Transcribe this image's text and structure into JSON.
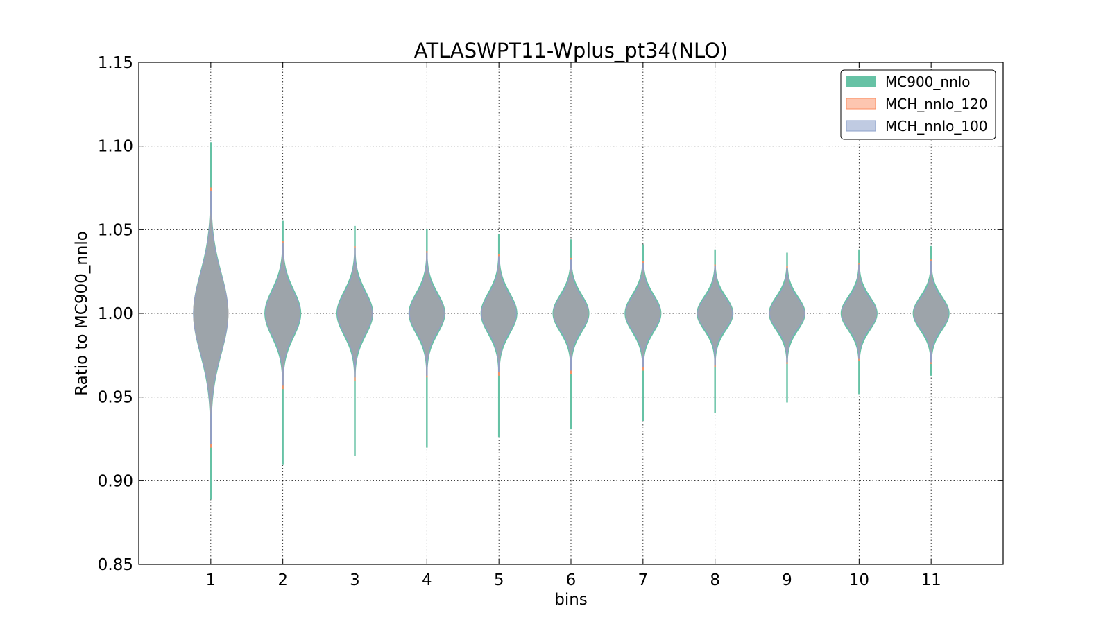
{
  "chart_data": {
    "type": "violin",
    "title": "ATLASWPT11-Wplus_pt34(NLO)",
    "xlabel": "bins",
    "ylabel": "Ratio to MC900_nnlo",
    "categories": [
      "1",
      "2",
      "3",
      "4",
      "5",
      "6",
      "7",
      "8",
      "9",
      "10",
      "11"
    ],
    "x": [
      1,
      2,
      3,
      4,
      5,
      6,
      7,
      8,
      9,
      10,
      11
    ],
    "xlim": [
      0,
      12
    ],
    "ylim": [
      0.85,
      1.15
    ],
    "yticks": [
      "0.85",
      "0.90",
      "0.95",
      "1.00",
      "1.05",
      "1.10",
      "1.15"
    ],
    "grid": true,
    "legend_position": "top-right",
    "series": [
      {
        "name": "MC900_nnlo",
        "color": "#66c2a5",
        "min": [
          0.889,
          0.91,
          0.915,
          0.92,
          0.926,
          0.931,
          0.936,
          0.941,
          0.947,
          0.952,
          0.963
        ],
        "max": [
          1.102,
          1.055,
          1.052,
          1.05,
          1.047,
          1.044,
          1.041,
          1.038,
          1.036,
          1.038,
          1.04
        ],
        "center": [
          1.0,
          1.0,
          1.0,
          1.0,
          1.0,
          1.0,
          1.0,
          1.0,
          1.0,
          1.0,
          1.0
        ],
        "spread": [
          0.024,
          0.014,
          0.013,
          0.012,
          0.012,
          0.011,
          0.011,
          0.01,
          0.01,
          0.01,
          0.01
        ],
        "max_halfwidth": [
          0.24,
          0.25,
          0.25,
          0.25,
          0.25,
          0.25,
          0.25,
          0.25,
          0.25,
          0.25,
          0.25
        ]
      },
      {
        "name": "MCH_nnlo_120",
        "color": "#fc8d62",
        "min": [
          0.92,
          0.955,
          0.96,
          0.962,
          0.963,
          0.964,
          0.966,
          0.968,
          0.97,
          0.972,
          0.97
        ],
        "max": [
          1.075,
          1.043,
          1.04,
          1.037,
          1.035,
          1.033,
          1.031,
          1.029,
          1.028,
          1.03,
          1.032
        ],
        "center": [
          1.0,
          1.0,
          1.0,
          1.0,
          1.0,
          1.0,
          1.0,
          1.0,
          1.0,
          1.0,
          1.0
        ],
        "spread": [
          0.023,
          0.013,
          0.012,
          0.011,
          0.011,
          0.01,
          0.01,
          0.009,
          0.009,
          0.009,
          0.009
        ],
        "max_halfwidth": [
          0.24,
          0.24,
          0.24,
          0.24,
          0.24,
          0.24,
          0.24,
          0.24,
          0.24,
          0.24,
          0.24
        ]
      },
      {
        "name": "MCH_nnlo_100",
        "color": "#8da0cb",
        "min": [
          0.922,
          0.957,
          0.962,
          0.963,
          0.965,
          0.966,
          0.968,
          0.969,
          0.971,
          0.973,
          0.971
        ],
        "max": [
          1.073,
          1.042,
          1.039,
          1.036,
          1.034,
          1.032,
          1.03,
          1.028,
          1.027,
          1.029,
          1.031
        ],
        "center": [
          1.0,
          1.0,
          1.0,
          1.0,
          1.0,
          1.0,
          1.0,
          1.0,
          1.0,
          1.0,
          1.0
        ],
        "spread": [
          0.023,
          0.013,
          0.012,
          0.011,
          0.011,
          0.01,
          0.01,
          0.009,
          0.009,
          0.009,
          0.009
        ],
        "max_halfwidth": [
          0.24,
          0.24,
          0.24,
          0.24,
          0.24,
          0.24,
          0.24,
          0.24,
          0.24,
          0.24,
          0.24
        ]
      }
    ]
  }
}
